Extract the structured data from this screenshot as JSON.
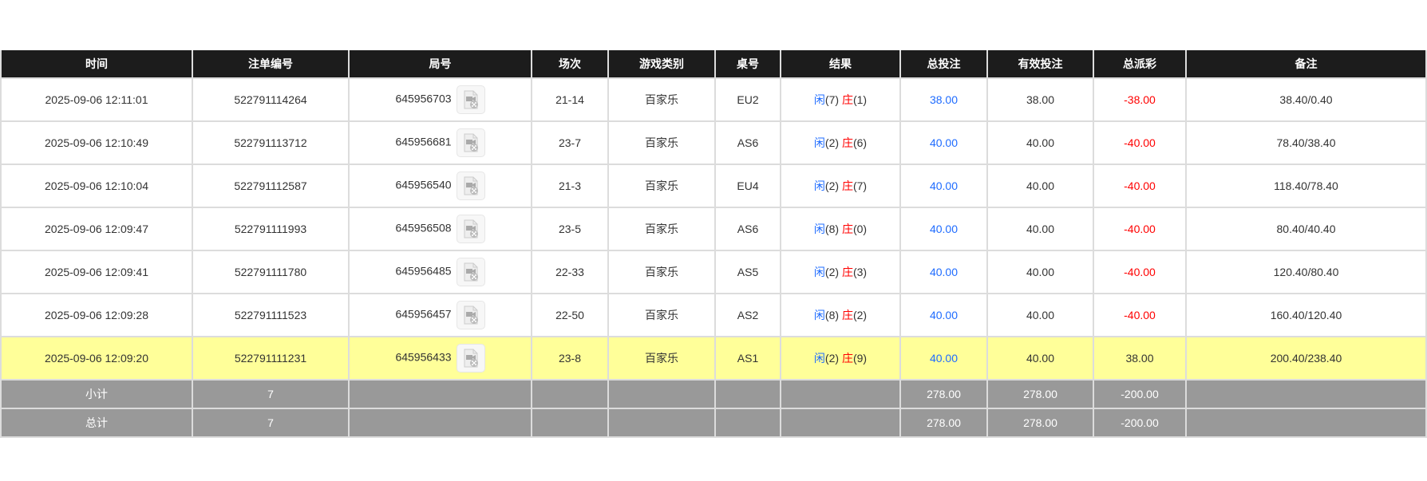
{
  "columns": [
    "时间",
    "注单编号",
    "局号",
    "场次",
    "游戏类别",
    "桌号",
    "结果",
    "总投注",
    "有效投注",
    "总派彩",
    "备注"
  ],
  "rows": [
    {
      "time": "2025-09-06 12:11:01",
      "bet_id": "522791114264",
      "round": "645956703",
      "shoe": "21-14",
      "game": "百家乐",
      "table": "EU2",
      "player": "闲",
      "player_n": "(7)",
      "banker": "庄",
      "banker_n": "(1)",
      "total": "38.00",
      "valid": "38.00",
      "payout": "-38.00",
      "payout_neg": true,
      "note": "38.40/0.40",
      "highlight": false
    },
    {
      "time": "2025-09-06 12:10:49",
      "bet_id": "522791113712",
      "round": "645956681",
      "shoe": "23-7",
      "game": "百家乐",
      "table": "AS6",
      "player": "闲",
      "player_n": "(2)",
      "banker": "庄",
      "banker_n": "(6)",
      "total": "40.00",
      "valid": "40.00",
      "payout": "-40.00",
      "payout_neg": true,
      "note": "78.40/38.40",
      "highlight": false
    },
    {
      "time": "2025-09-06 12:10:04",
      "bet_id": "522791112587",
      "round": "645956540",
      "shoe": "21-3",
      "game": "百家乐",
      "table": "EU4",
      "player": "闲",
      "player_n": "(2)",
      "banker": "庄",
      "banker_n": "(7)",
      "total": "40.00",
      "valid": "40.00",
      "payout": "-40.00",
      "payout_neg": true,
      "note": "118.40/78.40",
      "highlight": false
    },
    {
      "time": "2025-09-06 12:09:47",
      "bet_id": "522791111993",
      "round": "645956508",
      "shoe": "23-5",
      "game": "百家乐",
      "table": "AS6",
      "player": "闲",
      "player_n": "(8)",
      "banker": "庄",
      "banker_n": "(0)",
      "total": "40.00",
      "valid": "40.00",
      "payout": "-40.00",
      "payout_neg": true,
      "note": "80.40/40.40",
      "highlight": false
    },
    {
      "time": "2025-09-06 12:09:41",
      "bet_id": "522791111780",
      "round": "645956485",
      "shoe": "22-33",
      "game": "百家乐",
      "table": "AS5",
      "player": "闲",
      "player_n": "(2)",
      "banker": "庄",
      "banker_n": "(3)",
      "total": "40.00",
      "valid": "40.00",
      "payout": "-40.00",
      "payout_neg": true,
      "note": "120.40/80.40",
      "highlight": false
    },
    {
      "time": "2025-09-06 12:09:28",
      "bet_id": "522791111523",
      "round": "645956457",
      "shoe": "22-50",
      "game": "百家乐",
      "table": "AS2",
      "player": "闲",
      "player_n": "(8)",
      "banker": "庄",
      "banker_n": "(2)",
      "total": "40.00",
      "valid": "40.00",
      "payout": "-40.00",
      "payout_neg": true,
      "note": "160.40/120.40",
      "highlight": false
    },
    {
      "time": "2025-09-06 12:09:20",
      "bet_id": "522791111231",
      "round": "645956433",
      "shoe": "23-8",
      "game": "百家乐",
      "table": "AS1",
      "player": "闲",
      "player_n": "(2)",
      "banker": "庄",
      "banker_n": "(9)",
      "total": "40.00",
      "valid": "40.00",
      "payout": "38.00",
      "payout_neg": false,
      "note": "200.40/238.40",
      "highlight": true
    }
  ],
  "summary": [
    {
      "label": "小计",
      "count": "7",
      "total": "278.00",
      "valid": "278.00",
      "payout": "-200.00"
    },
    {
      "label": "总计",
      "count": "7",
      "total": "278.00",
      "valid": "278.00",
      "payout": "-200.00"
    }
  ],
  "colors": {
    "header_bg": "#1c1c1c",
    "highlight": "#ffff99",
    "summary_bg": "#999999",
    "blue": "#1f6cff",
    "red": "#ff0000"
  },
  "icons": {
    "replay": "video-file-icon"
  }
}
